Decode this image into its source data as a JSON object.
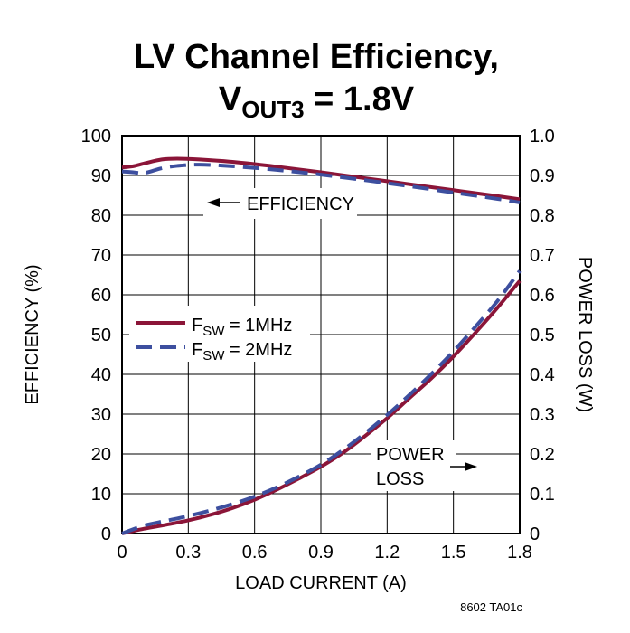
{
  "chart_data": {
    "type": "line",
    "title_line1": "LV Channel Efficiency,",
    "title_line2": {
      "v": "V",
      "sub": "OUT3",
      "rest": " = 1.8V"
    },
    "xlabel": "LOAD CURRENT (A)",
    "ylabel_left": "EFFICIENCY (%)",
    "ylabel_right": "POWER LOSS (W)",
    "xlim": [
      0,
      1.8
    ],
    "ylim_left": [
      0,
      100
    ],
    "ylim_right": [
      0,
      1.0
    ],
    "x_ticks": [
      "0",
      "0.3",
      "0.6",
      "0.9",
      "1.2",
      "1.5",
      "1.8"
    ],
    "x_tick_values": [
      0,
      0.3,
      0.6,
      0.9,
      1.2,
      1.5,
      1.8
    ],
    "y_left_ticks": [
      "0",
      "10",
      "20",
      "30",
      "40",
      "50",
      "60",
      "70",
      "80",
      "90",
      "100"
    ],
    "y_left_values": [
      0,
      10,
      20,
      30,
      40,
      50,
      60,
      70,
      80,
      90,
      100
    ],
    "y_right_ticks": [
      "0",
      "0.1",
      "0.2",
      "0.3",
      "0.4",
      "0.5",
      "0.6",
      "0.7",
      "0.8",
      "0.9",
      "1.0"
    ],
    "grid": true,
    "series": [
      {
        "name": "FSW = 1MHz",
        "label_main": "F",
        "label_sub": "SW",
        "label_rest": " = 1MHz",
        "color": "#8b1538",
        "dash": "solid",
        "quantity": "efficiency",
        "x": [
          0,
          0.05,
          0.1,
          0.18,
          0.25,
          0.35,
          0.5,
          0.7,
          0.9,
          1.1,
          1.3,
          1.5,
          1.7,
          1.8
        ],
        "y": [
          92,
          92.3,
          93,
          94,
          94.2,
          94,
          93.4,
          92.2,
          90.8,
          89.3,
          87.8,
          86.3,
          84.8,
          84
        ]
      },
      {
        "name": "FSW = 2MHz",
        "label_main": "F",
        "label_sub": "SW",
        "label_rest": " = 2MHz",
        "color": "#3d4f9f",
        "dash": "dashed",
        "quantity": "efficiency",
        "x": [
          0,
          0.05,
          0.1,
          0.18,
          0.25,
          0.35,
          0.5,
          0.7,
          0.9,
          1.1,
          1.3,
          1.5,
          1.7,
          1.8
        ],
        "y": [
          91,
          90.8,
          90.6,
          91.8,
          92.4,
          92.7,
          92.3,
          91.4,
          90.2,
          88.8,
          87.3,
          85.7,
          84.1,
          83.2
        ]
      },
      {
        "name": "FSW = 1MHz",
        "color": "#8b1538",
        "dash": "solid",
        "quantity": "power_loss",
        "x": [
          0,
          0.1,
          0.2,
          0.3,
          0.4,
          0.5,
          0.6,
          0.7,
          0.8,
          0.9,
          1.0,
          1.1,
          1.2,
          1.3,
          1.4,
          1.5,
          1.6,
          1.7,
          1.8
        ],
        "y": [
          0,
          0.012,
          0.022,
          0.033,
          0.047,
          0.064,
          0.085,
          0.11,
          0.138,
          0.168,
          0.203,
          0.245,
          0.29,
          0.34,
          0.39,
          0.445,
          0.505,
          0.568,
          0.635
        ]
      },
      {
        "name": "FSW = 2MHz",
        "color": "#3d4f9f",
        "dash": "dashed",
        "quantity": "power_loss",
        "x": [
          0,
          0.1,
          0.2,
          0.3,
          0.4,
          0.5,
          0.6,
          0.7,
          0.8,
          0.9,
          1.0,
          1.1,
          1.2,
          1.3,
          1.4,
          1.5,
          1.6,
          1.7,
          1.8
        ],
        "y": [
          0,
          0.02,
          0.032,
          0.044,
          0.058,
          0.074,
          0.093,
          0.116,
          0.143,
          0.173,
          0.21,
          0.252,
          0.298,
          0.348,
          0.401,
          0.458,
          0.52,
          0.585,
          0.66
        ]
      }
    ],
    "annotations": {
      "efficiency": "EFFICIENCY",
      "power_line1": "POWER",
      "power_line2": "LOSS"
    },
    "figure_code": "8602 TA01c"
  }
}
